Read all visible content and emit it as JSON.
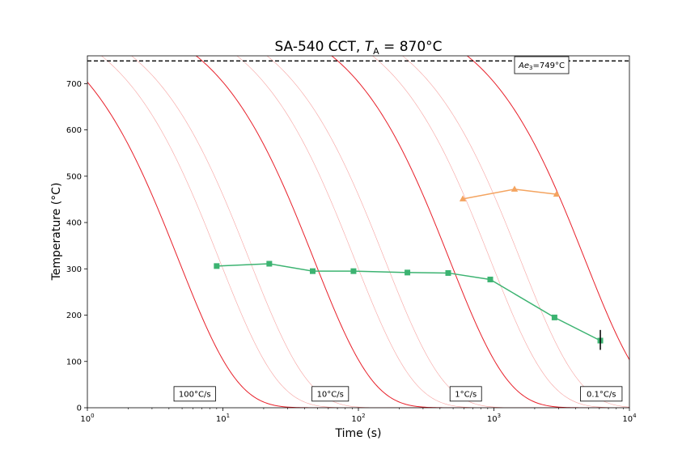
{
  "chart_data": {
    "type": "line",
    "title_main": "SA-540 CCT, ",
    "title_var": "T",
    "title_sub": "A",
    "title_rest": " = 870°C",
    "xlabel": "Time (s)",
    "ylabel": "Temperature (°C)",
    "xscale": "log",
    "xlim": [
      1,
      10000
    ],
    "ylim": [
      0,
      750
    ],
    "x_ticks": [
      {
        "value": 1,
        "base": "10",
        "exp": "0"
      },
      {
        "value": 10,
        "base": "10",
        "exp": "1"
      },
      {
        "value": 100,
        "base": "10",
        "exp": "2"
      },
      {
        "value": 1000,
        "base": "10",
        "exp": "3"
      },
      {
        "value": 10000,
        "base": "10",
        "exp": "4"
      }
    ],
    "y_ticks": [
      0,
      100,
      200,
      300,
      400,
      500,
      600,
      700
    ],
    "ae3": {
      "temperature": 749,
      "label_prefix": "Ae",
      "label_sub": "3",
      "label_suffix": "=749°C",
      "color": "#000000"
    },
    "rate_labels": [
      {
        "text": "100°C/s",
        "x": 6.2,
        "y": 30
      },
      {
        "text": "10°C/s",
        "x": 62,
        "y": 30
      },
      {
        "text": "1°C/s",
        "x": 620,
        "y": 30
      },
      {
        "text": "0.1°C/s",
        "x": 6200,
        "y": 30
      }
    ],
    "cooling_curves": [
      {
        "rate": 100,
        "major": true,
        "color": "#e8202a"
      },
      {
        "rate": 50,
        "major": false,
        "color": "#f4928f"
      },
      {
        "rate": 30,
        "major": false,
        "color": "#f4928f"
      },
      {
        "rate": 10,
        "major": true,
        "color": "#e8202a"
      },
      {
        "rate": 5,
        "major": false,
        "color": "#f4928f"
      },
      {
        "rate": 3,
        "major": false,
        "color": "#f4928f"
      },
      {
        "rate": 1,
        "major": true,
        "color": "#e8202a"
      },
      {
        "rate": 0.5,
        "major": false,
        "color": "#f4928f"
      },
      {
        "rate": 0.3,
        "major": false,
        "color": "#f4928f"
      },
      {
        "rate": 0.1,
        "major": true,
        "color": "#e8202a"
      }
    ],
    "series": [
      {
        "color": "#3cb371",
        "marker": "square",
        "x": [
          9,
          22,
          46,
          92,
          230,
          460,
          940,
          2800,
          6100
        ],
        "y": [
          306,
          311,
          295,
          295,
          292,
          291,
          277,
          195,
          145
        ]
      },
      {
        "color": "#f4a460",
        "marker": "triangle",
        "x": [
          590,
          1420,
          2900
        ],
        "y": [
          451,
          472,
          461
        ]
      }
    ],
    "error_bar": {
      "x": 6100,
      "y_low": 125,
      "y_high": 168,
      "color": "#000000"
    }
  }
}
